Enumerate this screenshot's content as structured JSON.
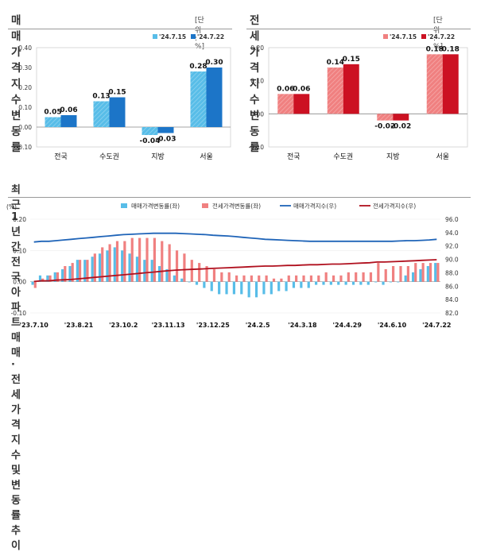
{
  "colors": {
    "sale_prev": "#58bde8",
    "sale_curr": "#1c75c8",
    "jeonse_prev": "#f08080",
    "jeonse_curr": "#cc1122",
    "sale_index_line": "#1f64b8",
    "jeonse_index_line": "#b0101e"
  },
  "panels": {
    "sale": {
      "title": "매매가격지수 변동률",
      "unit": "[단위 : %]"
    },
    "jeonse": {
      "title": "전세가격지수 변동률",
      "unit": "[단위 : %]"
    },
    "trend": {
      "title": "최근 1년간 전국 아파트 매매 · 전세가격 지수 및 변동률 추이"
    }
  },
  "chart_data": [
    {
      "type": "bar",
      "categories": [
        "전국",
        "수도권",
        "지방",
        "서울"
      ],
      "series": [
        {
          "name": "'24.7.15",
          "values": [
            0.05,
            0.13,
            -0.04,
            0.28
          ]
        },
        {
          "name": "'24.7.22",
          "values": [
            0.06,
            0.15,
            -0.03,
            0.3
          ]
        }
      ],
      "value_labels": [
        [
          "0.05",
          "0.13",
          "-0.04",
          "0.28"
        ],
        [
          "0.06",
          "0.15",
          "-0.03",
          "0.30"
        ]
      ],
      "ylim": [
        -0.1,
        0.4
      ],
      "yticks": [
        "0.40",
        "0.30",
        "0.20",
        "0.10",
        "0.00",
        "-0.10"
      ],
      "ytick_values": [
        0.4,
        0.3,
        0.2,
        0.1,
        0.0,
        -0.1
      ],
      "legend": "top-right"
    },
    {
      "type": "bar",
      "categories": [
        "전국",
        "수도권",
        "지방",
        "서울"
      ],
      "series": [
        {
          "name": "'24.7.15",
          "values": [
            0.06,
            0.14,
            -0.02,
            0.18
          ]
        },
        {
          "name": "'24.7.22",
          "values": [
            0.06,
            0.15,
            -0.02,
            0.18
          ]
        }
      ],
      "value_labels": [
        [
          "0.06",
          "0.14",
          "-0.02",
          "0.18"
        ],
        [
          "0.06",
          "0.15",
          "-0.02",
          "0.18"
        ]
      ],
      "ylim": [
        -0.1,
        0.2
      ],
      "yticks": [
        "0.20",
        "0.10",
        "0.00",
        "-0.10"
      ],
      "ytick_values": [
        0.2,
        0.1,
        0.0,
        -0.1
      ],
      "legend": "top-right"
    },
    {
      "type": "bar+line",
      "left_unit": "(%)",
      "ylim_left": [
        -0.1,
        0.2
      ],
      "yticks_left": [
        "0.20",
        "0.10",
        "0.00",
        "-0.10"
      ],
      "ytick_values_left": [
        0.2,
        0.1,
        0.0,
        -0.1
      ],
      "ylim_right": [
        82,
        96
      ],
      "yticks_right": [
        "96.0",
        "94.0",
        "92.0",
        "90.0",
        "88.0",
        "86.0",
        "84.0",
        "82.0"
      ],
      "ytick_values_right": [
        96,
        94,
        92,
        90,
        88,
        86,
        84,
        82
      ],
      "xticks": [
        "'23.7.10",
        "'23.8.21",
        "'23.10.2",
        "'23.11.13",
        "'23.12.25",
        "'24.2.5",
        "'24.3.18",
        "'24.4.29",
        "'24.6.10",
        "'24.7.22"
      ],
      "xtick_indices": [
        0,
        6,
        12,
        18,
        24,
        30,
        36,
        42,
        48,
        54
      ],
      "legend": "top",
      "series": [
        {
          "name": "매매가격변동률(좌)",
          "kind": "bar",
          "axis": "left",
          "values": [
            -0.01,
            0.02,
            0.02,
            0.03,
            0.04,
            0.05,
            0.07,
            0.07,
            0.08,
            0.09,
            0.1,
            0.11,
            0.1,
            0.09,
            0.08,
            0.07,
            0.07,
            0.05,
            0.04,
            0.02,
            0.01,
            0.0,
            -0.01,
            -0.02,
            -0.03,
            -0.04,
            -0.04,
            -0.04,
            -0.04,
            -0.05,
            -0.05,
            -0.04,
            -0.04,
            -0.03,
            -0.03,
            -0.02,
            -0.02,
            -0.02,
            -0.01,
            -0.01,
            -0.01,
            -0.01,
            -0.01,
            -0.01,
            -0.01,
            -0.01,
            0.0,
            -0.01,
            0.0,
            0.0,
            0.02,
            0.03,
            0.04,
            0.05,
            0.06
          ]
        },
        {
          "name": "전세가격변동률(좌)",
          "kind": "bar",
          "axis": "left",
          "values": [
            -0.02,
            0.01,
            0.02,
            0.03,
            0.05,
            0.06,
            0.07,
            0.07,
            0.09,
            0.11,
            0.12,
            0.13,
            0.13,
            0.14,
            0.14,
            0.14,
            0.14,
            0.13,
            0.12,
            0.1,
            0.09,
            0.07,
            0.06,
            0.05,
            0.04,
            0.03,
            0.03,
            0.02,
            0.02,
            0.02,
            0.02,
            0.02,
            0.01,
            0.01,
            0.02,
            0.02,
            0.02,
            0.02,
            0.02,
            0.03,
            0.02,
            0.02,
            0.03,
            0.03,
            0.03,
            0.03,
            0.06,
            0.04,
            0.05,
            0.05,
            0.05,
            0.06,
            0.06,
            0.06,
            0.06
          ]
        },
        {
          "name": "매매가격지수(우)",
          "kind": "line",
          "axis": "right",
          "values": [
            92.6,
            92.7,
            92.7,
            92.8,
            92.9,
            93.0,
            93.1,
            93.2,
            93.3,
            93.4,
            93.5,
            93.6,
            93.7,
            93.75,
            93.8,
            93.85,
            93.9,
            93.9,
            93.9,
            93.9,
            93.85,
            93.8,
            93.75,
            93.7,
            93.6,
            93.55,
            93.5,
            93.4,
            93.3,
            93.2,
            93.1,
            93.0,
            92.95,
            92.9,
            92.85,
            92.8,
            92.75,
            92.7,
            92.7,
            92.7,
            92.7,
            92.7,
            92.7,
            92.7,
            92.7,
            92.7,
            92.7,
            92.7,
            92.7,
            92.75,
            92.8,
            92.8,
            92.85,
            92.9,
            93.0
          ]
        },
        {
          "name": "전세가격지수(우)",
          "kind": "line",
          "axis": "right",
          "values": [
            86.7,
            86.8,
            86.8,
            86.9,
            86.95,
            87.0,
            87.1,
            87.2,
            87.3,
            87.4,
            87.5,
            87.6,
            87.7,
            87.8,
            87.9,
            88.0,
            88.1,
            88.2,
            88.3,
            88.4,
            88.45,
            88.5,
            88.55,
            88.6,
            88.65,
            88.7,
            88.75,
            88.8,
            88.85,
            88.9,
            88.95,
            89.0,
            89.0,
            89.05,
            89.1,
            89.1,
            89.15,
            89.2,
            89.2,
            89.25,
            89.3,
            89.3,
            89.35,
            89.4,
            89.45,
            89.5,
            89.6,
            89.6,
            89.65,
            89.7,
            89.75,
            89.8,
            89.85,
            89.9,
            89.95
          ]
        }
      ]
    }
  ]
}
